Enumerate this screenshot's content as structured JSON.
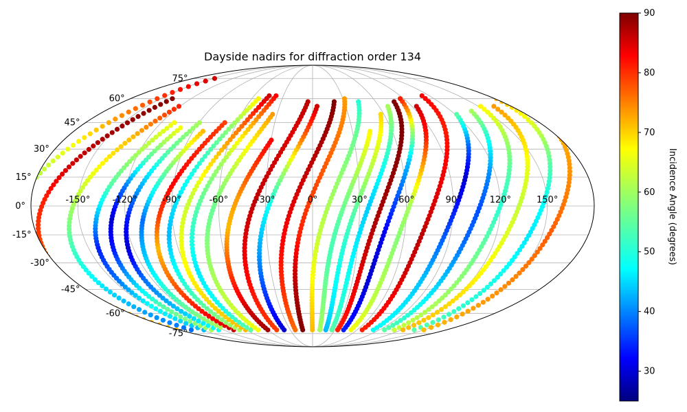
{
  "chart_data": {
    "type": "scatter",
    "projection": "mollweide",
    "title": "Dayside nadirs for diffraction order 134",
    "x_ticks": [
      "-150°",
      "-120°",
      "-90°",
      "-60°",
      "-30°",
      "0°",
      "30°",
      "60°",
      "90°",
      "120°",
      "150°"
    ],
    "y_ticks": [
      "-75°",
      "-60°",
      "-45°",
      "-30°",
      "-15°",
      "0°",
      "15°",
      "30°",
      "45°",
      "60°",
      "75°"
    ],
    "grid": true,
    "colorbar": {
      "label": "Incidence Angle (degrees)",
      "colormap": "jet",
      "range": [
        25,
        90
      ],
      "ticks": [
        "30",
        "40",
        "50",
        "60",
        "70",
        "80",
        "90"
      ]
    },
    "tracks_note_free": true,
    "tracks": [
      {
        "lon": -180,
        "lat_min": -75,
        "lat_max": 75,
        "inc": [
          35,
          40,
          45,
          55,
          60,
          65,
          75,
          85
        ]
      },
      {
        "lon": -165,
        "lat_min": -72,
        "lat_max": 60,
        "inc": [
          70,
          72,
          75,
          78,
          80,
          85,
          88,
          90
        ]
      },
      {
        "lon": -145,
        "lat_min": -72,
        "lat_max": 55,
        "inc": [
          40,
          45,
          50,
          55,
          60,
          65,
          70,
          80
        ]
      },
      {
        "lon": -128,
        "lat_min": -72,
        "lat_max": 45,
        "inc": [
          45,
          50,
          40,
          35,
          45,
          55,
          60,
          65
        ]
      },
      {
        "lon": -118,
        "lat_min": -72,
        "lat_max": 42,
        "inc": [
          60,
          55,
          45,
          35,
          30,
          40,
          55,
          65
        ]
      },
      {
        "lon": -108,
        "lat_min": -72,
        "lat_max": 45,
        "inc": [
          50,
          45,
          40,
          30,
          35,
          45,
          55,
          60
        ]
      },
      {
        "lon": -98,
        "lat_min": -70,
        "lat_max": 40,
        "inc": [
          60,
          55,
          50,
          45,
          40,
          50,
          60,
          70
        ]
      },
      {
        "lon": -88,
        "lat_min": -72,
        "lat_max": 45,
        "inc": [
          85,
          80,
          75,
          70,
          78,
          82,
          80,
          78
        ]
      },
      {
        "lon": -80,
        "lat_min": -72,
        "lat_max": 60,
        "inc": [
          60,
          55,
          50,
          45,
          48,
          52,
          58,
          66
        ]
      },
      {
        "lon": -72,
        "lat_min": -72,
        "lat_max": 62,
        "inc": [
          70,
          68,
          66,
          64,
          62,
          68,
          75,
          85
        ]
      },
      {
        "lon": -65,
        "lat_min": -72,
        "lat_max": 62,
        "inc": [
          55,
          50,
          48,
          52,
          56,
          60,
          70,
          82
        ]
      },
      {
        "lon": -55,
        "lat_min": -72,
        "lat_max": 50,
        "inc": [
          65,
          62,
          60,
          58,
          56,
          60,
          66,
          72
        ]
      },
      {
        "lon": -42,
        "lat_min": -72,
        "lat_max": 35,
        "inc": [
          88,
          85,
          80,
          75,
          70,
          72,
          78,
          82
        ]
      },
      {
        "lon": -30,
        "lat_min": -72,
        "lat_max": 58,
        "inc": [
          78,
          80,
          82,
          84,
          86,
          85,
          84,
          86
        ]
      },
      {
        "lon": -20,
        "lat_min": -72,
        "lat_max": 55,
        "inc": [
          30,
          35,
          40,
          45,
          50,
          60,
          75,
          85
        ]
      },
      {
        "lon": -5,
        "lat_min": -72,
        "lat_max": 58,
        "inc": [
          75,
          78,
          80,
          82,
          84,
          86,
          88,
          90
        ]
      },
      {
        "lon": 5,
        "lat_min": -72,
        "lat_max": 60,
        "inc": [
          90,
          88,
          85,
          80,
          78,
          76,
          74,
          72
        ]
      },
      {
        "lon": 18,
        "lat_min": -72,
        "lat_max": 58,
        "inc": [
          70,
          68,
          65,
          62,
          60,
          58,
          56,
          52
        ]
      },
      {
        "lon": 28,
        "lat_min": -72,
        "lat_max": 40,
        "inc": [
          60,
          58,
          56,
          54,
          55,
          58,
          62,
          66
        ]
      },
      {
        "lon": 36,
        "lat_min": -72,
        "lat_max": 50,
        "inc": [
          45,
          48,
          50,
          52,
          55,
          60,
          64,
          68
        ]
      },
      {
        "lon": 44,
        "lat_min": -72,
        "lat_max": 55,
        "inc": [
          55,
          52,
          50,
          48,
          46,
          50,
          55,
          60
        ]
      },
      {
        "lon": 52,
        "lat_min": -72,
        "lat_max": 58,
        "inc": [
          80,
          82,
          84,
          86,
          88,
          89,
          90,
          90
        ]
      },
      {
        "lon": 60,
        "lat_min": -72,
        "lat_max": 60,
        "inc": [
          35,
          32,
          30,
          32,
          38,
          45,
          60,
          80
        ]
      },
      {
        "lon": 70,
        "lat_min": -72,
        "lat_max": 55,
        "inc": [
          65,
          62,
          60,
          58,
          60,
          70,
          80,
          85
        ]
      },
      {
        "lon": 85,
        "lat_min": -72,
        "lat_max": 62,
        "inc": [
          80,
          82,
          85,
          86,
          84,
          82,
          80,
          82
        ]
      },
      {
        "lon": 100,
        "lat_min": -72,
        "lat_max": 50,
        "inc": [
          50,
          48,
          45,
          40,
          35,
          30,
          40,
          55
        ]
      },
      {
        "lon": 115,
        "lat_min": -72,
        "lat_max": 52,
        "inc": [
          55,
          50,
          45,
          40,
          38,
          42,
          50,
          60
        ]
      },
      {
        "lon": 128,
        "lat_min": -72,
        "lat_max": 55,
        "inc": [
          62,
          60,
          58,
          55,
          52,
          55,
          60,
          66
        ]
      },
      {
        "lon": 140,
        "lat_min": -72,
        "lat_max": 55,
        "inc": [
          70,
          68,
          66,
          64,
          62,
          64,
          68,
          72
        ]
      },
      {
        "lon": 155,
        "lat_min": -72,
        "lat_max": 60,
        "inc": [
          55,
          52,
          50,
          48,
          50,
          55,
          62,
          70
        ]
      },
      {
        "lon": 168,
        "lat_min": -72,
        "lat_max": 62,
        "inc": [
          70,
          72,
          74,
          76,
          74,
          72,
          70,
          78
        ]
      }
    ]
  }
}
